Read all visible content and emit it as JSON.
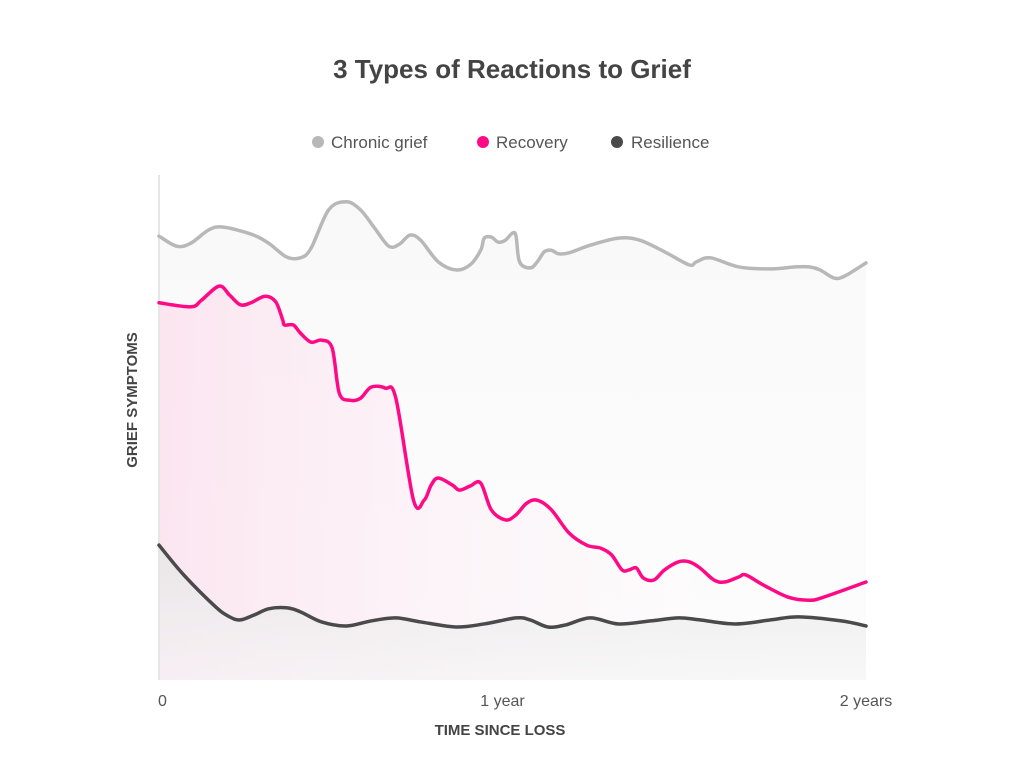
{
  "chart_data": {
    "type": "line",
    "title": "3 Types of Reactions to Grief",
    "xlabel": "TIME SINCE LOSS",
    "ylabel": "GRIEF SYMPTOMS",
    "xlim": [
      0,
      2
    ],
    "ylim": [
      0,
      100
    ],
    "x_ticks": [
      {
        "value": 0,
        "label": "0"
      },
      {
        "value": 1,
        "label": "1 year"
      },
      {
        "value": 2,
        "label": "2 years"
      }
    ],
    "grid": false,
    "legend_position": "top-center",
    "series": [
      {
        "name": "Chronic grief",
        "color": "#b8b8b8",
        "x": [
          0,
          0.05,
          0.09,
          0.14,
          0.18,
          0.26,
          0.31,
          0.36,
          0.4,
          0.43,
          0.48,
          0.53,
          0.57,
          0.61,
          0.65,
          0.68,
          0.71,
          0.74,
          0.79,
          0.84,
          0.88,
          0.91,
          0.92,
          0.94,
          0.96,
          0.98,
          1.0,
          1.01,
          1.02,
          1.05,
          1.07,
          1.09,
          1.11,
          1.13,
          1.16,
          1.22,
          1.3,
          1.36,
          1.43,
          1.5,
          1.52,
          1.56,
          1.64,
          1.73,
          1.8,
          1.84,
          1.87,
          1.91,
          1.94,
          2.0
        ],
        "y": [
          87.9,
          85.9,
          86.5,
          89.1,
          89.7,
          88.3,
          86.5,
          83.8,
          83.6,
          85.5,
          93.1,
          94.7,
          93.1,
          89.5,
          85.9,
          86.3,
          88.1,
          87.1,
          82.8,
          81.2,
          82.2,
          85.1,
          87.5,
          87.7,
          86.7,
          87.1,
          88.5,
          87.9,
          82.8,
          81.6,
          82.8,
          84.8,
          85.1,
          84.4,
          84.6,
          86.1,
          87.5,
          87.1,
          84.8,
          82.2,
          82.8,
          83.6,
          81.8,
          81.4,
          81.8,
          81.8,
          81.2,
          79.6,
          80.0,
          82.6
        ]
      },
      {
        "name": "Recovery",
        "color": "#ff0a86",
        "x": [
          0,
          0.09,
          0.12,
          0.17,
          0.2,
          0.23,
          0.26,
          0.3,
          0.33,
          0.35,
          0.355,
          0.38,
          0.4,
          0.43,
          0.46,
          0.49,
          0.51,
          0.54,
          0.57,
          0.6,
          0.64,
          0.67,
          0.72,
          0.75,
          0.77,
          0.79,
          0.83,
          0.85,
          0.88,
          0.91,
          0.94,
          0.98,
          1.01,
          1.04,
          1.07,
          1.11,
          1.16,
          1.21,
          1.25,
          1.28,
          1.31,
          1.33,
          1.35,
          1.37,
          1.4,
          1.43,
          1.47,
          1.5,
          1.53,
          1.57,
          1.6,
          1.64,
          1.66,
          1.71,
          1.78,
          1.84,
          1.88,
          2.0
        ],
        "y": [
          74.7,
          73.9,
          75.2,
          78.0,
          76.2,
          74.3,
          74.7,
          76.0,
          74.9,
          71.3,
          70.3,
          70.3,
          68.7,
          66.9,
          67.3,
          65.7,
          56.8,
          55.4,
          55.8,
          58.0,
          57.8,
          55.8,
          35.6,
          35.6,
          38.6,
          40.0,
          38.6,
          37.6,
          38.4,
          39.0,
          33.7,
          31.7,
          32.7,
          35.0,
          35.6,
          33.7,
          29.1,
          26.7,
          26.1,
          24.8,
          21.8,
          21.8,
          22.2,
          20.2,
          19.8,
          21.8,
          23.4,
          23.4,
          22.2,
          19.8,
          19.4,
          20.4,
          20.8,
          18.8,
          16.4,
          15.8,
          16.4,
          19.4
        ]
      },
      {
        "name": "Resilience",
        "color": "#4a4a4a",
        "x": [
          0,
          0.07,
          0.16,
          0.2,
          0.23,
          0.27,
          0.31,
          0.36,
          0.4,
          0.46,
          0.53,
          0.6,
          0.67,
          0.74,
          0.84,
          0.92,
          1.01,
          1.05,
          1.1,
          1.15,
          1.22,
          1.3,
          1.39,
          1.47,
          1.53,
          1.63,
          1.73,
          1.81,
          1.93,
          2.0
        ],
        "y": [
          26.7,
          20.8,
          14.5,
          12.5,
          11.9,
          12.9,
          14.1,
          14.3,
          13.5,
          11.5,
          10.7,
          11.7,
          12.3,
          11.5,
          10.5,
          11.1,
          12.3,
          11.9,
          10.5,
          10.9,
          12.3,
          11.1,
          11.7,
          12.3,
          11.9,
          11.1,
          11.9,
          12.5,
          11.7,
          10.7
        ]
      }
    ]
  }
}
